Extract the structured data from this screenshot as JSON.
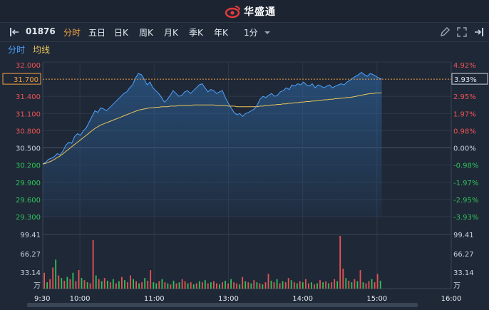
{
  "brand": {
    "name": "华盛通"
  },
  "toolbar": {
    "stock_code": "01876",
    "tabs": [
      "分时",
      "五日",
      "日K",
      "周K",
      "月K",
      "季K",
      "年K"
    ],
    "active_tab": "分时",
    "interval": "1分"
  },
  "subbar": {
    "label_time": "分时",
    "label_avg": "均线"
  },
  "current": {
    "price": "31.700",
    "pct": "3.93%"
  },
  "colors": {
    "up": "#e85454",
    "down": "#2fc25b",
    "neutral": "#c9d1db",
    "price_line": "#4ea3ff",
    "avg_line": "#e8c45a",
    "accent": "#f0a040"
  },
  "chart_data": {
    "type": "line",
    "price_axis": {
      "ticks": [
        "32.000",
        "31.700",
        "31.400",
        "31.100",
        "30.800",
        "30.500",
        "30.200",
        "29.900",
        "29.600",
        "29.300"
      ],
      "ylim": [
        29.3,
        32.0
      ]
    },
    "pct_axis": {
      "ticks": [
        "4.92%",
        "3.93%",
        "2.95%",
        "1.97%",
        "0.98%",
        "0.00%",
        "-0.98%",
        "-1.97%",
        "-2.95%",
        "-3.93%"
      ]
    },
    "x_ticks": [
      "9:30",
      "10:00",
      "11:00",
      "13:00",
      "14:00",
      "15:00",
      "16:00"
    ],
    "volume_axis": {
      "ticks": [
        "99.41",
        "66.27",
        "33.14",
        "万"
      ]
    },
    "series": [
      {
        "name": "分时",
        "values": [
          30.22,
          30.25,
          30.3,
          30.32,
          30.35,
          30.4,
          30.38,
          30.45,
          30.55,
          30.6,
          30.58,
          30.7,
          30.75,
          30.72,
          30.8,
          30.85,
          30.95,
          31.05,
          31.15,
          31.12,
          31.2,
          31.18,
          31.15,
          31.2,
          31.25,
          31.3,
          31.35,
          31.4,
          31.45,
          31.48,
          31.55,
          31.6,
          31.72,
          31.8,
          31.78,
          31.7,
          31.6,
          31.65,
          31.55,
          31.5,
          31.45,
          31.38,
          31.3,
          31.35,
          31.42,
          31.5,
          31.45,
          31.4,
          31.42,
          31.48,
          31.5,
          31.45,
          31.5,
          31.55,
          31.6,
          31.62,
          31.55,
          31.48,
          31.52,
          31.5,
          31.45,
          31.48,
          31.5,
          31.38,
          31.28,
          31.2,
          31.12,
          31.08,
          31.1,
          31.05,
          31.1,
          31.12,
          31.15,
          31.18,
          31.25,
          31.35,
          31.4,
          31.38,
          31.42,
          31.45,
          31.4,
          31.42,
          31.48,
          31.5,
          31.55,
          31.52,
          31.6,
          31.58,
          31.62,
          31.6,
          31.65,
          31.6,
          31.58,
          31.62,
          31.55,
          31.6,
          31.58,
          31.55,
          31.58,
          31.6,
          31.55,
          31.58,
          31.6,
          31.62,
          31.6,
          31.65,
          31.68,
          31.72,
          31.75,
          31.78,
          31.82,
          31.78,
          31.75,
          31.8,
          31.78,
          31.75,
          31.72,
          31.7
        ],
        "color": "#4ea3ff"
      },
      {
        "name": "均线",
        "values": [
          30.22,
          30.23,
          30.25,
          30.27,
          30.3,
          30.33,
          30.36,
          30.4,
          30.44,
          30.48,
          30.52,
          30.56,
          30.6,
          30.64,
          30.68,
          30.72,
          30.76,
          30.8,
          30.84,
          30.87,
          30.9,
          30.92,
          30.94,
          30.96,
          30.98,
          31.0,
          31.02,
          31.04,
          31.06,
          31.08,
          31.1,
          31.12,
          31.14,
          31.16,
          31.17,
          31.18,
          31.19,
          31.2,
          31.2,
          31.21,
          31.21,
          31.22,
          31.22,
          31.22,
          31.23,
          31.23,
          31.23,
          31.24,
          31.24,
          31.24,
          31.24,
          31.24,
          31.25,
          31.25,
          31.25,
          31.25,
          31.25,
          31.25,
          31.25,
          31.25,
          31.24,
          31.24,
          31.24,
          31.24,
          31.23,
          31.23,
          31.23,
          31.22,
          31.22,
          31.22,
          31.22,
          31.22,
          31.22,
          31.22,
          31.22,
          31.23,
          31.23,
          31.24,
          31.24,
          31.25,
          31.25,
          31.26,
          31.26,
          31.27,
          31.27,
          31.28,
          31.28,
          31.29,
          31.29,
          31.3,
          31.3,
          31.31,
          31.31,
          31.32,
          31.32,
          31.33,
          31.33,
          31.34,
          31.34,
          31.35,
          31.35,
          31.36,
          31.36,
          31.37,
          31.37,
          31.38,
          31.38,
          31.39,
          31.4,
          31.41,
          31.42,
          31.43,
          31.44,
          31.45,
          31.45,
          31.46,
          31.46,
          31.46
        ],
        "color": "#e8c45a"
      }
    ],
    "volume": {
      "values": [
        30,
        12,
        18,
        40,
        55,
        25,
        20,
        15,
        22,
        18,
        30,
        14,
        35,
        20,
        16,
        12,
        10,
        92,
        25,
        18,
        14,
        20,
        15,
        12,
        18,
        10,
        14,
        22,
        16,
        12,
        25,
        18,
        14,
        10,
        12,
        20,
        15,
        35,
        12,
        10,
        14,
        18,
        12,
        10,
        8,
        15,
        10,
        12,
        18,
        14,
        10,
        12,
        8,
        10,
        14,
        12,
        16,
        10,
        12,
        14,
        10,
        8,
        12,
        15,
        10,
        18,
        12,
        10,
        8,
        22,
        14,
        12,
        10,
        16,
        12,
        10,
        8,
        12,
        28,
        15,
        12,
        18,
        10,
        14,
        12,
        20,
        16,
        12,
        10,
        14,
        12,
        18,
        10,
        12,
        8,
        10,
        16,
        12,
        14,
        10,
        12,
        18,
        14,
        100,
        38,
        20,
        15,
        12,
        18,
        14,
        35,
        12,
        10,
        14,
        18,
        12,
        28,
        15
      ],
      "up": [
        true,
        false,
        true,
        true,
        false,
        true,
        false,
        true,
        false,
        true,
        false,
        true,
        true,
        false,
        true,
        false,
        true,
        true,
        false,
        true,
        false,
        true,
        false,
        true,
        false,
        true,
        false,
        true,
        false,
        true,
        true,
        false,
        true,
        false,
        true,
        false,
        true,
        true,
        false,
        false,
        true,
        false,
        true,
        false,
        true,
        false,
        true,
        false,
        true,
        true,
        false,
        true,
        false,
        true,
        false,
        true,
        false,
        true,
        false,
        true,
        true,
        false,
        true,
        false,
        true,
        false,
        true,
        true,
        false,
        true,
        false,
        true,
        false,
        true,
        false,
        true,
        false,
        true,
        true,
        false,
        true,
        false,
        true,
        false,
        true,
        true,
        false,
        true,
        false,
        true,
        false,
        true,
        true,
        false,
        true,
        false,
        true,
        false,
        true,
        false,
        true,
        true,
        false,
        true,
        true,
        false,
        true,
        false,
        true,
        false,
        true,
        false,
        true,
        true,
        false,
        true,
        true,
        false
      ]
    }
  }
}
